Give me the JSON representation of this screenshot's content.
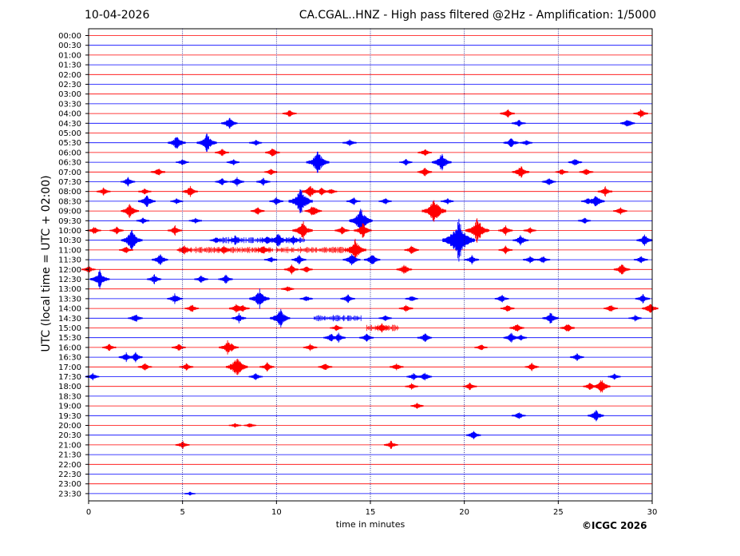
{
  "header": {
    "date": "10-04-2026",
    "title": "CA.CGAL..HNZ - High pass filtered @2Hz - Amplification: 1/5000"
  },
  "footer": {
    "copyright": "©ICGC 2026"
  },
  "chart_data": {
    "type": "line",
    "title": "CA.CGAL..HNZ - High pass filtered @2Hz - Amplification: 1/5000",
    "xlabel": "time in minutes",
    "ylabel": "UTC (local time = UTC + 02:00)",
    "xlim": [
      0,
      30
    ],
    "xticks": [
      0,
      5,
      10,
      15,
      20,
      25,
      30
    ],
    "xtick_labels": [
      "0",
      "5",
      "10",
      "15",
      "20",
      "25",
      "30"
    ],
    "vertical_gridlines_at": [
      5,
      10,
      15,
      20,
      25
    ],
    "row_labels": [
      "00:00",
      "00:30",
      "01:00",
      "01:30",
      "02:00",
      "02:30",
      "03:00",
      "03:30",
      "04:00",
      "04:30",
      "05:00",
      "05:30",
      "06:00",
      "06:30",
      "07:00",
      "07:30",
      "08:00",
      "08:30",
      "09:00",
      "09:30",
      "10:00",
      "10:30",
      "11:00",
      "11:30",
      "12:00",
      "12:30",
      "13:00",
      "13:30",
      "14:00",
      "14:30",
      "15:00",
      "15:30",
      "16:00",
      "16:30",
      "17:00",
      "17:30",
      "18:00",
      "18:30",
      "19:00",
      "19:30",
      "20:00",
      "20:30",
      "21:00",
      "21:30",
      "22:00",
      "22:30",
      "23:00",
      "23:30"
    ],
    "colors": {
      "even_rows": "#ff0000",
      "odd_rows": "#0000ff",
      "grid": "#000080"
    },
    "events": [
      {
        "row": "04:00",
        "minute": 10.7,
        "amp": 0.5
      },
      {
        "row": "04:00",
        "minute": 22.3,
        "amp": 0.6
      },
      {
        "row": "04:00",
        "minute": 29.4,
        "amp": 0.6
      },
      {
        "row": "04:30",
        "minute": 7.5,
        "amp": 0.8
      },
      {
        "row": "04:30",
        "minute": 22.9,
        "amp": 0.5
      },
      {
        "row": "04:30",
        "minute": 28.7,
        "amp": 0.6
      },
      {
        "row": "05:30",
        "minute": 4.7,
        "amp": 1.0
      },
      {
        "row": "05:30",
        "minute": 6.3,
        "amp": 1.3
      },
      {
        "row": "05:30",
        "minute": 8.9,
        "amp": 0.4
      },
      {
        "row": "05:30",
        "minute": 13.9,
        "amp": 0.5
      },
      {
        "row": "05:30",
        "minute": 22.5,
        "amp": 0.7
      },
      {
        "row": "05:30",
        "minute": 23.3,
        "amp": 0.4
      },
      {
        "row": "06:00",
        "minute": 7.1,
        "amp": 0.5
      },
      {
        "row": "06:00",
        "minute": 9.8,
        "amp": 0.6
      },
      {
        "row": "06:00",
        "minute": 17.9,
        "amp": 0.5
      },
      {
        "row": "06:30",
        "minute": 5.0,
        "amp": 0.4
      },
      {
        "row": "06:30",
        "minute": 7.7,
        "amp": 0.4
      },
      {
        "row": "06:30",
        "minute": 12.2,
        "amp": 1.6
      },
      {
        "row": "06:30",
        "minute": 16.9,
        "amp": 0.4
      },
      {
        "row": "06:30",
        "minute": 18.8,
        "amp": 1.2
      },
      {
        "row": "06:30",
        "minute": 25.9,
        "amp": 0.5
      },
      {
        "row": "07:00",
        "minute": 3.7,
        "amp": 0.6
      },
      {
        "row": "07:00",
        "minute": 9.7,
        "amp": 0.4
      },
      {
        "row": "07:00",
        "minute": 17.9,
        "amp": 0.6
      },
      {
        "row": "07:00",
        "minute": 23.0,
        "amp": 0.9
      },
      {
        "row": "07:00",
        "minute": 25.2,
        "amp": 0.4
      },
      {
        "row": "07:00",
        "minute": 26.5,
        "amp": 0.5
      },
      {
        "row": "07:30",
        "minute": 2.1,
        "amp": 0.6
      },
      {
        "row": "07:30",
        "minute": 7.1,
        "amp": 0.5
      },
      {
        "row": "07:30",
        "minute": 7.9,
        "amp": 0.6
      },
      {
        "row": "07:30",
        "minute": 9.3,
        "amp": 0.5
      },
      {
        "row": "07:30",
        "minute": 24.5,
        "amp": 0.5
      },
      {
        "row": "08:00",
        "minute": 0.8,
        "amp": 0.5
      },
      {
        "row": "08:00",
        "minute": 3.0,
        "amp": 0.4
      },
      {
        "row": "08:00",
        "minute": 5.4,
        "amp": 0.7
      },
      {
        "row": "08:00",
        "minute": 11.8,
        "amp": 0.9
      },
      {
        "row": "08:00",
        "minute": 12.4,
        "amp": 0.5
      },
      {
        "row": "08:00",
        "minute": 12.9,
        "amp": 0.4
      },
      {
        "row": "08:00",
        "minute": 27.5,
        "amp": 0.6
      },
      {
        "row": "08:30",
        "minute": 3.1,
        "amp": 0.9
      },
      {
        "row": "08:30",
        "minute": 4.7,
        "amp": 0.4
      },
      {
        "row": "08:30",
        "minute": 10.0,
        "amp": 0.5
      },
      {
        "row": "08:30",
        "minute": 11.3,
        "amp": 1.8
      },
      {
        "row": "08:30",
        "minute": 14.1,
        "amp": 0.5
      },
      {
        "row": "08:30",
        "minute": 15.8,
        "amp": 0.4
      },
      {
        "row": "08:30",
        "minute": 19.1,
        "amp": 0.4
      },
      {
        "row": "08:30",
        "minute": 26.6,
        "amp": 0.5
      },
      {
        "row": "08:30",
        "minute": 27.0,
        "amp": 1.0
      },
      {
        "row": "09:00",
        "minute": 2.2,
        "amp": 1.0
      },
      {
        "row": "09:00",
        "minute": 9.0,
        "amp": 0.5
      },
      {
        "row": "09:00",
        "minute": 11.9,
        "amp": 0.6
      },
      {
        "row": "09:00",
        "minute": 12.0,
        "amp": 0.7
      },
      {
        "row": "09:00",
        "minute": 18.4,
        "amp": 1.8
      },
      {
        "row": "09:00",
        "minute": 28.3,
        "amp": 0.5
      },
      {
        "row": "09:30",
        "minute": 2.9,
        "amp": 0.4
      },
      {
        "row": "09:30",
        "minute": 5.7,
        "amp": 0.4
      },
      {
        "row": "09:30",
        "minute": 14.5,
        "amp": 1.7
      },
      {
        "row": "09:30",
        "minute": 26.4,
        "amp": 0.4
      },
      {
        "row": "10:00",
        "minute": 0.3,
        "amp": 0.5
      },
      {
        "row": "10:00",
        "minute": 1.5,
        "amp": 0.5
      },
      {
        "row": "10:00",
        "minute": 4.6,
        "amp": 0.6
      },
      {
        "row": "10:00",
        "minute": 11.4,
        "amp": 1.3
      },
      {
        "row": "10:00",
        "minute": 13.5,
        "amp": 0.6
      },
      {
        "row": "10:00",
        "minute": 14.6,
        "amp": 1.0
      },
      {
        "row": "10:00",
        "minute": 20.7,
        "amp": 1.7
      },
      {
        "row": "10:00",
        "minute": 22.2,
        "amp": 0.6
      },
      {
        "row": "10:00",
        "minute": 23.5,
        "amp": 0.4
      },
      {
        "row": "10:30",
        "minute": 2.3,
        "amp": 1.4
      },
      {
        "row": "10:30",
        "minute": 6.8,
        "amp": 0.4
      },
      {
        "row": "10:30",
        "minute": 7.8,
        "amp": 0.6
      },
      {
        "row": "10:30",
        "minute": 9.5,
        "amp": 0.6
      },
      {
        "row": "10:30",
        "minute": 10.1,
        "amp": 1.0
      },
      {
        "row": "10:30",
        "minute": 10.9,
        "amp": 0.6
      },
      {
        "row": "10:30",
        "minute": 19.7,
        "amp": 2.8
      },
      {
        "row": "10:30",
        "minute": 23.0,
        "amp": 0.7
      },
      {
        "row": "10:30",
        "minute": 29.6,
        "amp": 0.8
      },
      {
        "row": "11:00",
        "minute": 2.0,
        "amp": 0.5
      },
      {
        "row": "11:00",
        "minute": 5.1,
        "amp": 0.6
      },
      {
        "row": "11:00",
        "minute": 7.2,
        "amp": 0.6
      },
      {
        "row": "11:00",
        "minute": 9.3,
        "amp": 0.7
      },
      {
        "row": "11:00",
        "minute": 14.2,
        "amp": 1.5
      },
      {
        "row": "11:00",
        "minute": 17.2,
        "amp": 0.6
      },
      {
        "row": "11:00",
        "minute": 22.2,
        "amp": 0.5
      },
      {
        "row": "11:30",
        "minute": 3.8,
        "amp": 0.8
      },
      {
        "row": "11:30",
        "minute": 9.7,
        "amp": 0.4
      },
      {
        "row": "11:30",
        "minute": 11.2,
        "amp": 0.6
      },
      {
        "row": "11:30",
        "minute": 14.0,
        "amp": 0.9
      },
      {
        "row": "11:30",
        "minute": 15.1,
        "amp": 0.8
      },
      {
        "row": "11:30",
        "minute": 20.4,
        "amp": 0.6
      },
      {
        "row": "11:30",
        "minute": 23.5,
        "amp": 0.5
      },
      {
        "row": "11:30",
        "minute": 24.2,
        "amp": 0.5
      },
      {
        "row": "11:30",
        "minute": 29.4,
        "amp": 0.5
      },
      {
        "row": "12:00",
        "minute": 0.0,
        "amp": 0.5
      },
      {
        "row": "12:00",
        "minute": 10.8,
        "amp": 0.6
      },
      {
        "row": "12:00",
        "minute": 11.6,
        "amp": 0.4
      },
      {
        "row": "12:00",
        "minute": 16.8,
        "amp": 0.7
      },
      {
        "row": "12:00",
        "minute": 28.4,
        "amp": 0.8
      },
      {
        "row": "12:30",
        "minute": 0.6,
        "amp": 1.2
      },
      {
        "row": "12:30",
        "minute": 3.5,
        "amp": 0.6
      },
      {
        "row": "12:30",
        "minute": 6.0,
        "amp": 0.5
      },
      {
        "row": "12:30",
        "minute": 7.3,
        "amp": 0.6
      },
      {
        "row": "13:00",
        "minute": 10.6,
        "amp": 0.4
      },
      {
        "row": "13:30",
        "minute": 4.6,
        "amp": 0.7
      },
      {
        "row": "13:30",
        "minute": 9.1,
        "amp": 1.3
      },
      {
        "row": "13:30",
        "minute": 11.6,
        "amp": 0.4
      },
      {
        "row": "13:30",
        "minute": 13.8,
        "amp": 0.6
      },
      {
        "row": "13:30",
        "minute": 17.2,
        "amp": 0.4
      },
      {
        "row": "13:30",
        "minute": 22.0,
        "amp": 0.5
      },
      {
        "row": "13:30",
        "minute": 29.5,
        "amp": 0.6
      },
      {
        "row": "14:00",
        "minute": 5.5,
        "amp": 0.5
      },
      {
        "row": "14:00",
        "minute": 7.9,
        "amp": 0.7
      },
      {
        "row": "14:00",
        "minute": 8.2,
        "amp": 0.5
      },
      {
        "row": "14:00",
        "minute": 16.9,
        "amp": 0.5
      },
      {
        "row": "14:00",
        "minute": 22.3,
        "amp": 0.5
      },
      {
        "row": "14:00",
        "minute": 27.8,
        "amp": 0.5
      },
      {
        "row": "14:00",
        "minute": 29.9,
        "amp": 0.8
      },
      {
        "row": "14:30",
        "minute": 2.5,
        "amp": 0.6
      },
      {
        "row": "14:30",
        "minute": 8.0,
        "amp": 0.6
      },
      {
        "row": "14:30",
        "minute": 10.2,
        "amp": 1.3
      },
      {
        "row": "14:30",
        "minute": 15.8,
        "amp": 0.4
      },
      {
        "row": "14:30",
        "minute": 24.6,
        "amp": 0.8
      },
      {
        "row": "14:30",
        "minute": 29.1,
        "amp": 0.4
      },
      {
        "row": "15:00",
        "minute": 13.2,
        "amp": 0.4
      },
      {
        "row": "15:00",
        "minute": 15.6,
        "amp": 0.6
      },
      {
        "row": "15:00",
        "minute": 22.8,
        "amp": 0.6
      },
      {
        "row": "15:00",
        "minute": 25.5,
        "amp": 0.6
      },
      {
        "row": "15:30",
        "minute": 12.9,
        "amp": 0.6
      },
      {
        "row": "15:30",
        "minute": 13.3,
        "amp": 0.6
      },
      {
        "row": "15:30",
        "minute": 14.8,
        "amp": 0.6
      },
      {
        "row": "15:30",
        "minute": 17.9,
        "amp": 0.6
      },
      {
        "row": "15:30",
        "minute": 22.5,
        "amp": 0.7
      },
      {
        "row": "15:30",
        "minute": 23.0,
        "amp": 0.4
      },
      {
        "row": "16:00",
        "minute": 1.1,
        "amp": 0.5
      },
      {
        "row": "16:00",
        "minute": 4.8,
        "amp": 0.5
      },
      {
        "row": "16:00",
        "minute": 7.4,
        "amp": 0.9
      },
      {
        "row": "16:00",
        "minute": 7.6,
        "amp": 0.6
      },
      {
        "row": "16:00",
        "minute": 11.8,
        "amp": 0.5
      },
      {
        "row": "16:00",
        "minute": 20.9,
        "amp": 0.4
      },
      {
        "row": "16:30",
        "minute": 2.0,
        "amp": 0.6
      },
      {
        "row": "16:30",
        "minute": 2.5,
        "amp": 0.6
      },
      {
        "row": "16:30",
        "minute": 26.0,
        "amp": 0.5
      },
      {
        "row": "17:00",
        "minute": 3.0,
        "amp": 0.5
      },
      {
        "row": "17:00",
        "minute": 5.2,
        "amp": 0.5
      },
      {
        "row": "17:00",
        "minute": 7.9,
        "amp": 1.5
      },
      {
        "row": "17:00",
        "minute": 9.5,
        "amp": 0.6
      },
      {
        "row": "17:00",
        "minute": 12.6,
        "amp": 0.5
      },
      {
        "row": "17:00",
        "minute": 16.4,
        "amp": 0.5
      },
      {
        "row": "17:00",
        "minute": 23.6,
        "amp": 0.5
      },
      {
        "row": "17:30",
        "minute": 0.2,
        "amp": 0.5
      },
      {
        "row": "17:30",
        "minute": 8.9,
        "amp": 0.5
      },
      {
        "row": "17:30",
        "minute": 17.3,
        "amp": 0.5
      },
      {
        "row": "17:30",
        "minute": 17.9,
        "amp": 0.6
      },
      {
        "row": "17:30",
        "minute": 28.0,
        "amp": 0.4
      },
      {
        "row": "18:00",
        "minute": 17.2,
        "amp": 0.4
      },
      {
        "row": "18:00",
        "minute": 20.3,
        "amp": 0.5
      },
      {
        "row": "18:00",
        "minute": 26.7,
        "amp": 0.5
      },
      {
        "row": "18:00",
        "minute": 27.3,
        "amp": 1.0
      },
      {
        "row": "19:00",
        "minute": 17.5,
        "amp": 0.4
      },
      {
        "row": "19:30",
        "minute": 22.9,
        "amp": 0.5
      },
      {
        "row": "19:30",
        "minute": 27.0,
        "amp": 0.8
      },
      {
        "row": "20:00",
        "minute": 7.8,
        "amp": 0.3
      },
      {
        "row": "20:00",
        "minute": 8.6,
        "amp": 0.3
      },
      {
        "row": "20:30",
        "minute": 20.5,
        "amp": 0.6
      },
      {
        "row": "21:00",
        "minute": 5.0,
        "amp": 0.5
      },
      {
        "row": "21:00",
        "minute": 16.1,
        "amp": 0.5
      },
      {
        "row": "23:30",
        "minute": 5.4,
        "amp": 0.2
      }
    ],
    "noise_bursts": [
      {
        "row": "10:30",
        "from": 7.0,
        "to": 11.5
      },
      {
        "row": "11:00",
        "from": 4.8,
        "to": 9.8
      },
      {
        "row": "11:00",
        "from": 10.0,
        "to": 14.3
      },
      {
        "row": "14:30",
        "from": 12.0,
        "to": 14.5
      },
      {
        "row": "15:00",
        "from": 14.8,
        "to": 16.5
      }
    ]
  }
}
